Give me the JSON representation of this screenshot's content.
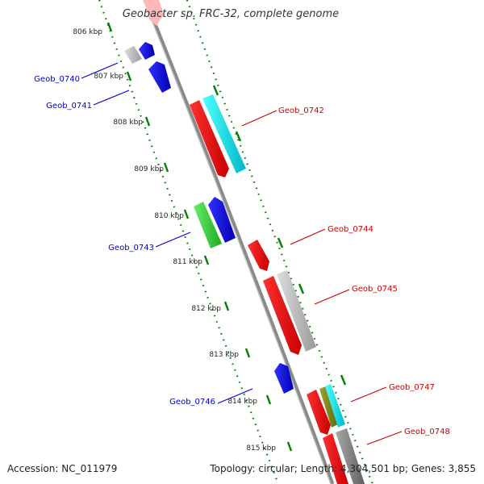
{
  "title": "Geobacter sp. FRC-32, complete genome",
  "accession": "Accession: NC_011979",
  "topology": "Topology: circular; Length: 4,304,501 bp; Genes: 3,855",
  "colors": {
    "forward_strand_gene": "#ff0000",
    "reverse_strand_gene": "#0000ff",
    "rna_gene": "#33cc33",
    "backbone": "#888888",
    "scale_ticks": "#008000",
    "label_forward": "#cc0000",
    "label_reverse": "#0000cc"
  },
  "scale": {
    "ticks": [
      "806 kbp",
      "807 kbp",
      "808 kbp",
      "809 kbp",
      "810 kbp",
      "811 kbp",
      "812 kbp",
      "813 kbp",
      "814 kbp",
      "815 kbp"
    ]
  },
  "genes": {
    "forward": [
      "Geob_0742",
      "Geob_0744",
      "Geob_0745",
      "Geob_0747",
      "Geob_0748"
    ],
    "reverse": [
      "Geob_0740",
      "Geob_0741",
      "Geob_0743",
      "Geob_0746"
    ]
  }
}
